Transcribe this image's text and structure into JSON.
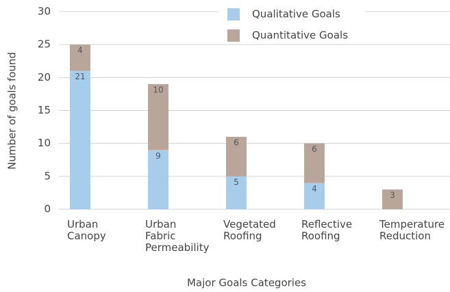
{
  "chart_data": {
    "type": "stacked_bar",
    "xlabel": "Major Goals Categories",
    "ylabel": "Number of goals found",
    "categories": [
      "Urban Canopy",
      "Urban Fabric Permeability",
      "Vegetated Roofing",
      "Reflective Roofing",
      "Temperature Reduction"
    ],
    "series": [
      {
        "name": "Qualitative Goals",
        "color": "#a8cdea",
        "values": [
          21,
          9,
          5,
          4,
          0
        ]
      },
      {
        "name": "Quantitative Goals",
        "color": "#b8a69b",
        "values": [
          4,
          10,
          6,
          6,
          3
        ]
      }
    ],
    "ylim": [
      0,
      30
    ],
    "yticks": [
      0,
      5,
      10,
      15,
      20,
      25,
      30
    ],
    "grid": true,
    "legend": "top"
  }
}
